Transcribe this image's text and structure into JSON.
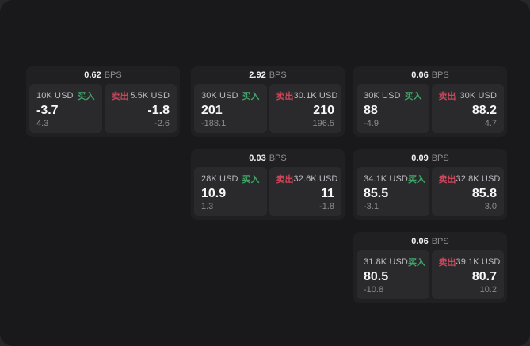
{
  "labels": {
    "bps": "BPS",
    "buy": "买入",
    "sell": "卖出"
  },
  "colors": {
    "page_bg": "#27272a",
    "window_bg": "#19191b",
    "card_bg": "#202023",
    "panel_bg": "#2a2a2d",
    "buy_green": "#3fa566",
    "sell_red": "#cb4659"
  },
  "cards": [
    {
      "bps": "0.62",
      "buy": {
        "amount": "10K USD",
        "price": "-3.7",
        "delta": "4.3"
      },
      "sell": {
        "amount": "5.5K USD",
        "price": "-1.8",
        "delta": "-2.6"
      }
    },
    {
      "bps": "2.92",
      "buy": {
        "amount": "30K USD",
        "price": "201",
        "delta": "-188.1"
      },
      "sell": {
        "amount": "30.1K USD",
        "price": "210",
        "delta": "196.5"
      }
    },
    {
      "bps": "0.06",
      "buy": {
        "amount": "30K USD",
        "price": "88",
        "delta": "-4.9"
      },
      "sell": {
        "amount": "30K USD",
        "price": "88.2",
        "delta": "4.7"
      }
    },
    {
      "bps": "0.03",
      "buy": {
        "amount": "28K USD",
        "price": "10.9",
        "delta": "1.3"
      },
      "sell": {
        "amount": "32.6K USD",
        "price": "11",
        "delta": "-1.8"
      }
    },
    {
      "bps": "0.09",
      "buy": {
        "amount": "34.1K USD",
        "price": "85.5",
        "delta": "-3.1"
      },
      "sell": {
        "amount": "32.8K USD",
        "price": "85.8",
        "delta": "3.0"
      }
    },
    {
      "bps": "0.06",
      "buy": {
        "amount": "31.8K USD",
        "price": "80.5",
        "delta": "-10.8"
      },
      "sell": {
        "amount": "39.1K USD",
        "price": "80.7",
        "delta": "10.2"
      }
    }
  ]
}
